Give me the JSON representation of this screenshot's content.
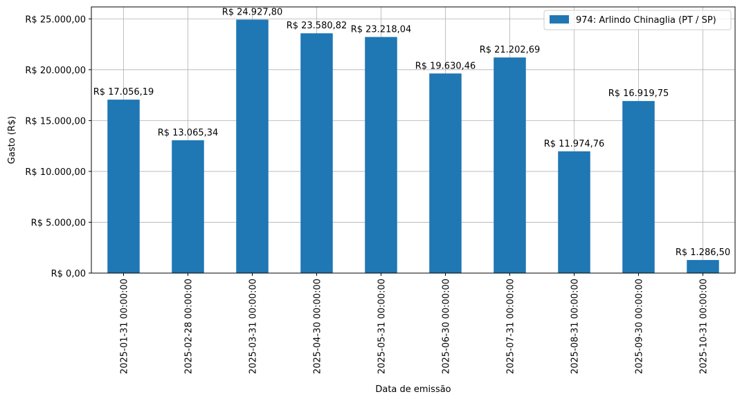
{
  "chart_data": {
    "type": "bar",
    "categories": [
      "2025-01-31 00:00:00",
      "2025-02-28 00:00:00",
      "2025-03-31 00:00:00",
      "2025-04-30 00:00:00",
      "2025-05-31 00:00:00",
      "2025-06-30 00:00:00",
      "2025-07-31 00:00:00",
      "2025-08-31 00:00:00",
      "2025-09-30 00:00:00",
      "2025-10-31 00:00:00"
    ],
    "series": [
      {
        "name": "974: Arlindo Chinaglia (PT / SP)",
        "color": "#1f77b4",
        "values": [
          17056.19,
          13065.34,
          24927.8,
          23580.82,
          23218.04,
          19630.46,
          21202.69,
          11974.76,
          16919.75,
          1286.5
        ],
        "data_labels": [
          "R$ 17.056,19",
          "R$ 13.065,34",
          "R$ 24.927,80",
          "R$ 23.580,82",
          "R$ 23.218,04",
          "R$ 19.630,46",
          "R$ 21.202,69",
          "R$ 11.974,76",
          "R$ 16.919,75",
          "R$ 1.286,50"
        ]
      }
    ],
    "title": "",
    "xlabel": "Data de emissão",
    "ylabel": "Gasto (R$)",
    "ylim": [
      0,
      26175
    ],
    "yticks": [
      0,
      5000,
      10000,
      15000,
      20000,
      25000
    ],
    "ytick_labels": [
      "R$ 0,00",
      "R$ 5.000,00",
      "R$ 10.000,00",
      "R$ 15.000,00",
      "R$ 20.000,00",
      "R$ 25.000,00"
    ],
    "grid": true,
    "legend_position": "top-right"
  }
}
